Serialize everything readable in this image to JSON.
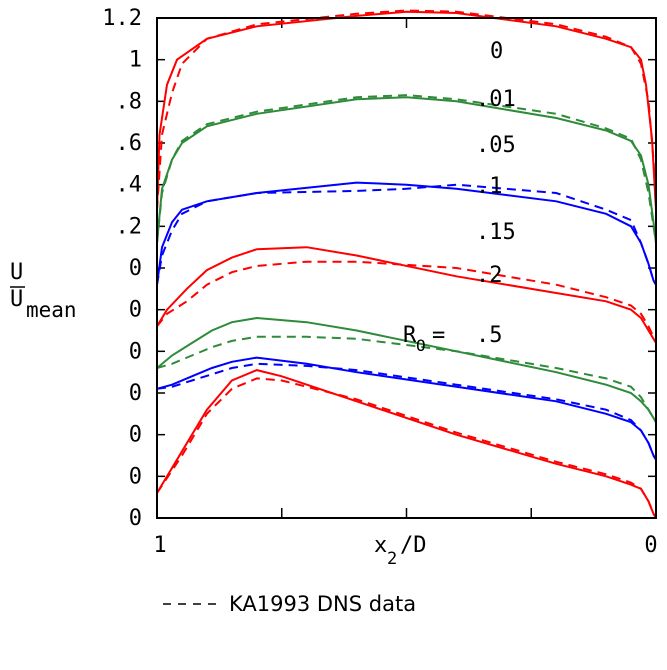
{
  "chart_data": {
    "type": "line",
    "title": "",
    "xlabel": {
      "main": "x",
      "sub": "2",
      "rest": "/D"
    },
    "ylabel": {
      "numerator": "U",
      "denominator": "U",
      "denominator_sub": "mean"
    },
    "x_tick_labels": {
      "left": "1",
      "right": "0"
    },
    "y_tick_labels": [
      "0",
      "0",
      "0",
      "0",
      "0",
      "0",
      "0",
      ".2",
      ".4",
      ".6",
      ".8",
      "1",
      "1.2"
    ],
    "ylim": [
      0,
      1.2
    ],
    "xlim": [
      1,
      0
    ],
    "curve_labels": [
      "0",
      ".01",
      ".05",
      ".1",
      ".15",
      ".2",
      ".5"
    ],
    "ro_prefix": {
      "main": "R",
      "sub": "O",
      "rest": "="
    },
    "legend": {
      "text": "KA1993 DNS data",
      "line_style": "dashed"
    },
    "colors": {
      "red": "#ff0000",
      "green": "#2e8b3a",
      "blue": "#0000ff"
    },
    "series": [
      {
        "name": "0",
        "color": "red",
        "y_offset": 0,
        "solid": [
          [
            1,
            0.68
          ],
          [
            0.995,
            0.86
          ],
          [
            0.98,
            0.98
          ],
          [
            0.96,
            1.04
          ],
          [
            0.9,
            1.09
          ],
          [
            0.8,
            1.12
          ],
          [
            0.6,
            1.145
          ],
          [
            0.5,
            1.155
          ],
          [
            0.4,
            1.152
          ],
          [
            0.2,
            1.12
          ],
          [
            0.1,
            1.09
          ],
          [
            0.05,
            1.07
          ],
          [
            0.03,
            1.04
          ],
          [
            0.02,
            0.98
          ],
          [
            0.008,
            0.85
          ],
          [
            0,
            0.68
          ]
        ],
        "dashed": [
          [
            1,
            0.68
          ],
          [
            0.99,
            0.86
          ],
          [
            0.97,
            0.96
          ],
          [
            0.95,
            1.03
          ],
          [
            0.9,
            1.09
          ],
          [
            0.8,
            1.125
          ],
          [
            0.6,
            1.15
          ],
          [
            0.5,
            1.158
          ],
          [
            0.4,
            1.155
          ],
          [
            0.2,
            1.125
          ],
          [
            0.1,
            1.095
          ],
          [
            0.05,
            1.07
          ],
          [
            0.03,
            1.03
          ],
          [
            0.015,
            0.94
          ],
          [
            0.005,
            0.8
          ],
          [
            0,
            0.68
          ]
        ]
      },
      {
        "name": ".01",
        "color": "green",
        "y_offset": 0,
        "solid": [
          [
            1,
            0.6
          ],
          [
            0.99,
            0.73
          ],
          [
            0.97,
            0.8
          ],
          [
            0.95,
            0.84
          ],
          [
            0.9,
            0.88
          ],
          [
            0.8,
            0.91
          ],
          [
            0.6,
            0.945
          ],
          [
            0.5,
            0.95
          ],
          [
            0.4,
            0.94
          ],
          [
            0.2,
            0.9
          ],
          [
            0.1,
            0.87
          ],
          [
            0.05,
            0.845
          ],
          [
            0.03,
            0.81
          ],
          [
            0.015,
            0.74
          ],
          [
            0.005,
            0.65
          ],
          [
            0,
            0.6
          ]
        ],
        "dashed": [
          [
            1,
            0.6
          ],
          [
            0.99,
            0.72
          ],
          [
            0.97,
            0.8
          ],
          [
            0.95,
            0.845
          ],
          [
            0.9,
            0.885
          ],
          [
            0.8,
            0.915
          ],
          [
            0.6,
            0.95
          ],
          [
            0.5,
            0.955
          ],
          [
            0.4,
            0.945
          ],
          [
            0.2,
            0.91
          ],
          [
            0.1,
            0.875
          ],
          [
            0.05,
            0.85
          ],
          [
            0.03,
            0.8
          ],
          [
            0.015,
            0.72
          ],
          [
            0.005,
            0.64
          ],
          [
            0,
            0.6
          ]
        ]
      },
      {
        "name": ".05",
        "color": "blue",
        "y_offset": 0,
        "solid": [
          [
            1,
            0.5
          ],
          [
            0.99,
            0.59
          ],
          [
            0.97,
            0.65
          ],
          [
            0.95,
            0.68
          ],
          [
            0.9,
            0.7
          ],
          [
            0.8,
            0.72
          ],
          [
            0.6,
            0.745
          ],
          [
            0.5,
            0.74
          ],
          [
            0.4,
            0.73
          ],
          [
            0.2,
            0.7
          ],
          [
            0.1,
            0.67
          ],
          [
            0.05,
            0.64
          ],
          [
            0.03,
            0.6
          ],
          [
            0.015,
            0.55
          ],
          [
            0.005,
            0.51
          ],
          [
            0,
            0.5
          ]
        ],
        "dashed": [
          [
            1,
            0.5
          ],
          [
            0.99,
            0.57
          ],
          [
            0.97,
            0.63
          ],
          [
            0.95,
            0.67
          ],
          [
            0.9,
            0.7
          ],
          [
            0.8,
            0.72
          ],
          [
            0.6,
            0.725
          ],
          [
            0.5,
            0.73
          ],
          [
            0.4,
            0.74
          ],
          [
            0.2,
            0.72
          ],
          [
            0.1,
            0.68
          ],
          [
            0.05,
            0.655
          ],
          [
            0.03,
            0.6
          ],
          [
            0.015,
            0.55
          ],
          [
            0.005,
            0.51
          ],
          [
            0,
            0.5
          ]
        ]
      },
      {
        "name": ".1",
        "color": "red",
        "y_offset": 0,
        "solid": [
          [
            1,
            0.4
          ],
          [
            0.98,
            0.44
          ],
          [
            0.94,
            0.49
          ],
          [
            0.9,
            0.535
          ],
          [
            0.85,
            0.565
          ],
          [
            0.8,
            0.585
          ],
          [
            0.7,
            0.59
          ],
          [
            0.6,
            0.57
          ],
          [
            0.4,
            0.52
          ],
          [
            0.2,
            0.48
          ],
          [
            0.1,
            0.46
          ],
          [
            0.05,
            0.44
          ],
          [
            0.03,
            0.42
          ],
          [
            0.015,
            0.39
          ],
          [
            0.005,
            0.37
          ],
          [
            0,
            0.36
          ]
        ],
        "dashed": [
          [
            1,
            0.4
          ],
          [
            0.98,
            0.43
          ],
          [
            0.94,
            0.46
          ],
          [
            0.9,
            0.5
          ],
          [
            0.85,
            0.53
          ],
          [
            0.8,
            0.545
          ],
          [
            0.7,
            0.555
          ],
          [
            0.6,
            0.555
          ],
          [
            0.4,
            0.54
          ],
          [
            0.2,
            0.5
          ],
          [
            0.1,
            0.47
          ],
          [
            0.05,
            0.45
          ],
          [
            0.03,
            0.43
          ],
          [
            0.015,
            0.4
          ],
          [
            0.005,
            0.375
          ],
          [
            0,
            0.36
          ]
        ]
      },
      {
        "name": ".15",
        "color": "green",
        "y_offset": 0,
        "solid": [
          [
            1,
            0.3
          ],
          [
            0.97,
            0.33
          ],
          [
            0.93,
            0.36
          ],
          [
            0.89,
            0.39
          ],
          [
            0.85,
            0.41
          ],
          [
            0.8,
            0.42
          ],
          [
            0.7,
            0.41
          ],
          [
            0.6,
            0.39
          ],
          [
            0.4,
            0.34
          ],
          [
            0.2,
            0.29
          ],
          [
            0.1,
            0.26
          ],
          [
            0.05,
            0.24
          ],
          [
            0.03,
            0.22
          ],
          [
            0.015,
            0.2
          ],
          [
            0.005,
            0.18
          ],
          [
            0,
            0.17
          ]
        ],
        "dashed": [
          [
            1,
            0.3
          ],
          [
            0.97,
            0.31
          ],
          [
            0.93,
            0.33
          ],
          [
            0.89,
            0.35
          ],
          [
            0.85,
            0.365
          ],
          [
            0.8,
            0.375
          ],
          [
            0.7,
            0.375
          ],
          [
            0.6,
            0.37
          ],
          [
            0.4,
            0.34
          ],
          [
            0.2,
            0.3
          ],
          [
            0.1,
            0.275
          ],
          [
            0.05,
            0.255
          ],
          [
            0.03,
            0.23
          ],
          [
            0.015,
            0.2
          ],
          [
            0.005,
            0.18
          ],
          [
            0,
            0.17
          ]
        ]
      },
      {
        "name": ".2",
        "color": "blue",
        "y_offset": 0,
        "solid": [
          [
            1,
            0.25
          ],
          [
            0.97,
            0.26
          ],
          [
            0.93,
            0.28
          ],
          [
            0.89,
            0.3
          ],
          [
            0.85,
            0.315
          ],
          [
            0.8,
            0.325
          ],
          [
            0.7,
            0.31
          ],
          [
            0.6,
            0.29
          ],
          [
            0.4,
            0.255
          ],
          [
            0.2,
            0.22
          ],
          [
            0.1,
            0.19
          ],
          [
            0.05,
            0.17
          ],
          [
            0.03,
            0.15
          ],
          [
            0.015,
            0.12
          ],
          [
            0.005,
            0.09
          ],
          [
            0,
            0.08
          ]
        ],
        "dashed": [
          [
            1,
            0.25
          ],
          [
            0.97,
            0.255
          ],
          [
            0.93,
            0.27
          ],
          [
            0.89,
            0.285
          ],
          [
            0.85,
            0.3
          ],
          [
            0.8,
            0.31
          ],
          [
            0.7,
            0.305
          ],
          [
            0.6,
            0.295
          ],
          [
            0.4,
            0.26
          ],
          [
            0.2,
            0.225
          ],
          [
            0.1,
            0.2
          ],
          [
            0.05,
            0.175
          ],
          [
            0.03,
            0.15
          ],
          [
            0.015,
            0.12
          ],
          [
            0.005,
            0.09
          ],
          [
            0,
            0.08
          ]
        ]
      },
      {
        "name": ".5",
        "color": "red",
        "y_offset": 0,
        "solid": [
          [
            1,
            0.0
          ],
          [
            0.95,
            0.1
          ],
          [
            0.9,
            0.2
          ],
          [
            0.85,
            0.27
          ],
          [
            0.8,
            0.295
          ],
          [
            0.75,
            0.28
          ],
          [
            0.6,
            0.22
          ],
          [
            0.4,
            0.14
          ],
          [
            0.2,
            0.07
          ],
          [
            0.1,
            0.04
          ],
          [
            0.05,
            0.02
          ],
          [
            0.03,
            0.01
          ],
          [
            0.015,
            -0.02
          ],
          [
            0.005,
            -0.05
          ],
          [
            0,
            -0.06
          ]
        ],
        "dashed": [
          [
            1,
            0.0
          ],
          [
            0.95,
            0.09
          ],
          [
            0.9,
            0.19
          ],
          [
            0.85,
            0.25
          ],
          [
            0.8,
            0.275
          ],
          [
            0.75,
            0.27
          ],
          [
            0.6,
            0.225
          ],
          [
            0.4,
            0.145
          ],
          [
            0.2,
            0.075
          ],
          [
            0.1,
            0.045
          ],
          [
            0.05,
            0.025
          ],
          [
            0.03,
            0.01
          ],
          [
            0.015,
            -0.02
          ],
          [
            0.005,
            -0.05
          ],
          [
            0,
            -0.06
          ]
        ]
      }
    ]
  }
}
